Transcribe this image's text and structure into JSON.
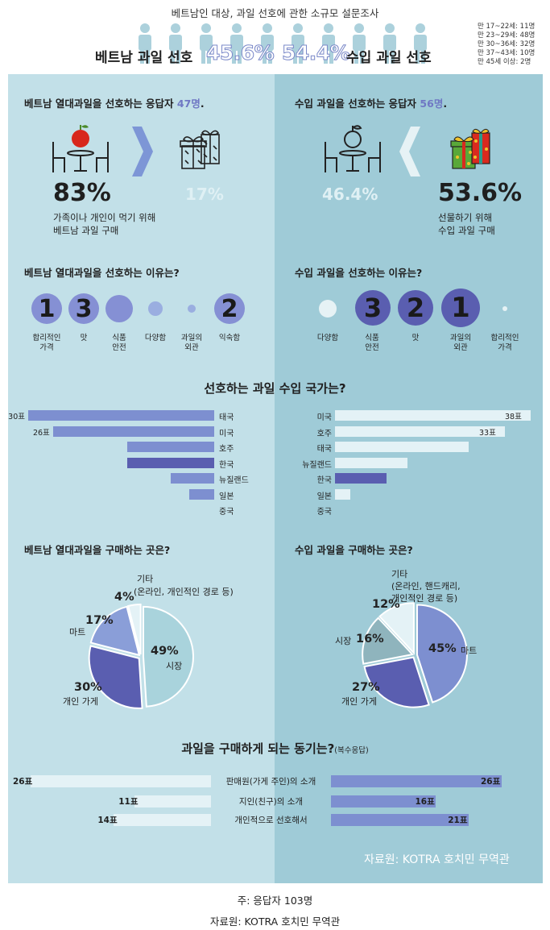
{
  "header": {
    "survey_title": "베트남인 대상, 과일 선호에 관한 소규모 설문조사",
    "pref_left": "베트남 과일 선호",
    "pct_left": "45.6%",
    "pct_right": "54.4%",
    "pref_right": "수입 과일 선호",
    "age_groups": [
      "만 17~22세: 11명",
      "만 23~29세: 48명",
      "만 30~36세: 32명",
      "만 37~43세: 10명",
      "만 45세 이상: 2명"
    ]
  },
  "colors": {
    "panel_left": "#c2e0e8",
    "panel_right": "#9fcbd7",
    "accent": "#6f78c4",
    "dark_blue": "#5a5eb0",
    "mid_blue": "#7d8fd0",
    "light_bar": "#e4f2f6"
  },
  "respondents": {
    "left": {
      "pre": "베트남 열대과일을 선호하는 응답자 ",
      "count": "47명",
      "post": "."
    },
    "right": {
      "pre": "수입 과일을 선호하는 응답자 ",
      "count": "56명",
      "post": "."
    }
  },
  "consume": {
    "left": {
      "main_pct": "83%",
      "other_pct": "17%",
      "line1": "가족이나 개인이 먹기 위해",
      "line2": "베트남 과일 구매"
    },
    "right": {
      "other_pct": "46.4%",
      "main_pct": "53.6%",
      "line1": "선물하기 위해",
      "line2": "수입 과일 구매"
    }
  },
  "reasons": {
    "left_title": "베트남 열대과일을 선호하는 이유는?",
    "right_title": "수입 과일을 선호하는 이유는?",
    "left": [
      {
        "rank": "1",
        "l1": "합리적인",
        "l2": "가격"
      },
      {
        "rank": "3",
        "l1": "맛",
        "l2": ""
      },
      {
        "rank": "",
        "l1": "식품",
        "l2": "안전"
      },
      {
        "rank": "",
        "l1": "다양함",
        "l2": ""
      },
      {
        "rank": "",
        "l1": "과일의",
        "l2": "외관"
      },
      {
        "rank": "2",
        "l1": "익숙함",
        "l2": ""
      }
    ],
    "right": [
      {
        "rank": "",
        "l1": "다양함",
        "l2": ""
      },
      {
        "rank": "3",
        "l1": "식품",
        "l2": "안전"
      },
      {
        "rank": "2",
        "l1": "맛",
        "l2": ""
      },
      {
        "rank": "1",
        "l1": "과일의",
        "l2": "외관"
      },
      {
        "rank": "",
        "l1": "합리적인",
        "l2": "가격"
      }
    ]
  },
  "countries_title": "선호하는 과일 수입 국가는?",
  "purchase_titles": {
    "left": "베트남 열대과일을 구매하는 곳은?",
    "right": "수입 과일을 구매하는 곳은?"
  },
  "motive": {
    "title": "과일을 구매하게 되는 동기는?",
    "note": "(복수응답)"
  },
  "source_panel": "자료원: KOTRA 호치민 무역관",
  "footer": {
    "note": "주: 응답자 103명",
    "source": "자료원: KOTRA 호치민 무역관"
  },
  "chart_data": [
    {
      "type": "bar",
      "orientation": "horizontal",
      "title": "선호하는 과일 수입 국가는? (베트남 열대과일 선호 응답자)",
      "categories": [
        "태국",
        "미국",
        "호주",
        "한국",
        "뉴질랜드",
        "일본",
        "중국"
      ],
      "values": [
        30,
        26,
        14,
        14,
        7,
        4,
        0
      ],
      "value_labels": [
        "30표",
        "26표",
        "",
        "",
        "",
        "",
        ""
      ],
      "highlight": "한국"
    },
    {
      "type": "bar",
      "orientation": "horizontal",
      "title": "선호하는 과일 수입 국가는? (수입 과일 선호 응답자)",
      "categories": [
        "미국",
        "호주",
        "태국",
        "뉴질랜드",
        "한국",
        "일본",
        "중국"
      ],
      "values": [
        38,
        33,
        26,
        14,
        10,
        3,
        0
      ],
      "value_labels": [
        "38표",
        "33표",
        "",
        "",
        "",
        "",
        ""
      ],
      "highlight": "한국"
    },
    {
      "type": "pie",
      "title": "베트남 열대과일을 구매하는 곳은?",
      "slices": [
        {
          "label": "시장",
          "pct_label": "49%",
          "value": 49,
          "color": "#a9d3dc"
        },
        {
          "label": "개인 가게",
          "pct_label": "30%",
          "value": 30,
          "color": "#5a5eb0"
        },
        {
          "label": "마트",
          "pct_label": "17%",
          "value": 17,
          "color": "#8a9ed8"
        },
        {
          "label": "기타 (온라인, 개인적인 경로 등)",
          "pct_label": "4%",
          "value": 4,
          "color": "#e4f2f6"
        }
      ],
      "label_texts": {
        "market": "시장",
        "personal": "개인 가게",
        "mart": "마트",
        "etc1": "기타",
        "etc2": "(온라인, 개인적인 경로 등)"
      }
    },
    {
      "type": "pie",
      "title": "수입 과일을 구매하는 곳은?",
      "slices": [
        {
          "label": "마트",
          "pct_label": "45%",
          "value": 45,
          "color": "#7d8fd0"
        },
        {
          "label": "개인 가게",
          "pct_label": "27%",
          "value": 27,
          "color": "#5a5eb0"
        },
        {
          "label": "시장",
          "pct_label": "16%",
          "value": 16,
          "color": "#8fb4bd"
        },
        {
          "label": "기타 (온라인, 핸드캐리, 개인적인 경로 등)",
          "pct_label": "12%",
          "value": 12,
          "color": "#e4f2f6"
        }
      ],
      "label_texts": {
        "mart": "마트",
        "personal": "개인 가게",
        "market": "시장",
        "etc1": "기타",
        "etc2": "(온라인, 핸드캐리,",
        "etc3": "개인적인 경로 등)"
      }
    },
    {
      "type": "bar",
      "orientation": "horizontal",
      "title": "과일을 구매하게 되는 동기는? (복수응답)",
      "categories": [
        "판매원(가게 주인)의 소개",
        "지인(친구)의 소개",
        "개인적으로 선호해서"
      ],
      "series": [
        {
          "name": "베트남 열대과일 선호",
          "values": [
            26,
            11,
            14
          ],
          "labels": [
            "26표",
            "11표",
            "14표"
          ]
        },
        {
          "name": "수입 과일 선호",
          "values": [
            26,
            16,
            21
          ],
          "labels": [
            "26표",
            "16표",
            "21표"
          ]
        }
      ]
    }
  ]
}
